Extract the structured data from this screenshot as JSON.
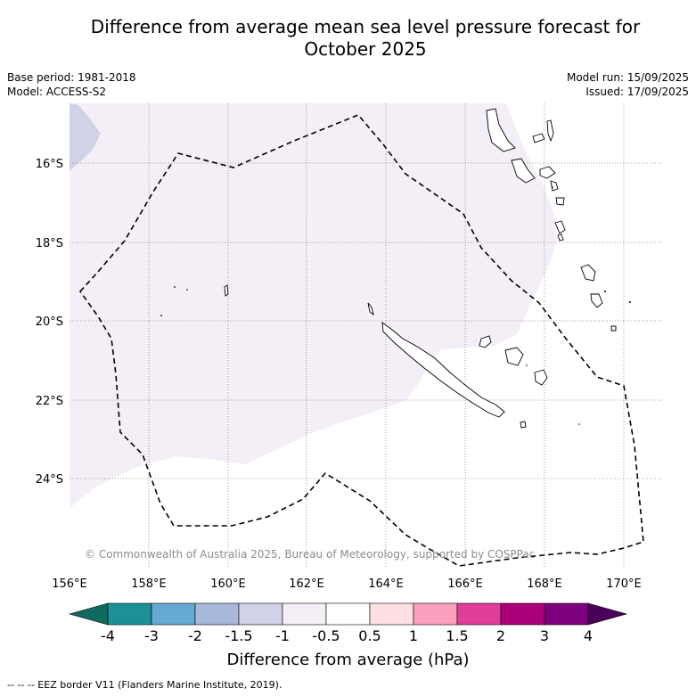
{
  "title_line1": "Difference from average mean sea level pressure forecast for",
  "title_line2": "October 2025",
  "base_period": "Base period: 1981-2018",
  "model": "Model: ACCESS-S2",
  "model_run": "Model run: 15/09/2025",
  "issued": "Issued: 17/09/2025",
  "lat_labels": [
    "16°S",
    "18°S",
    "20°S",
    "22°S",
    "24°S"
  ],
  "lon_labels": [
    "156°E",
    "158°E",
    "160°E",
    "162°E",
    "164°E",
    "166°E",
    "168°E",
    "170°E"
  ],
  "copyright": "© Commonwealth of Australia 2025, Bureau of Meteorology, supported by COSPPac",
  "colorbar": {
    "title": "Difference from average (hPa)",
    "ticks": [
      "-4",
      "-3",
      "-2",
      "-1.5",
      "-1",
      "-0.5",
      "0.5",
      "1",
      "1.5",
      "2",
      "3",
      "4"
    ],
    "colors": [
      "#1b9096",
      "#65aad0",
      "#a8b8da",
      "#d1d1e7",
      "#f4eef6",
      "#ffffff",
      "#ffe0e0",
      "#fba0bc",
      "#e03c9a",
      "#ac007a",
      "#7d007d"
    ],
    "low_color": "#0f6b5f",
    "high_color": "#4b005a"
  },
  "legend_note": "--  --  -- EEZ border V11 (Flanders Marine Institute, 2019)."
}
